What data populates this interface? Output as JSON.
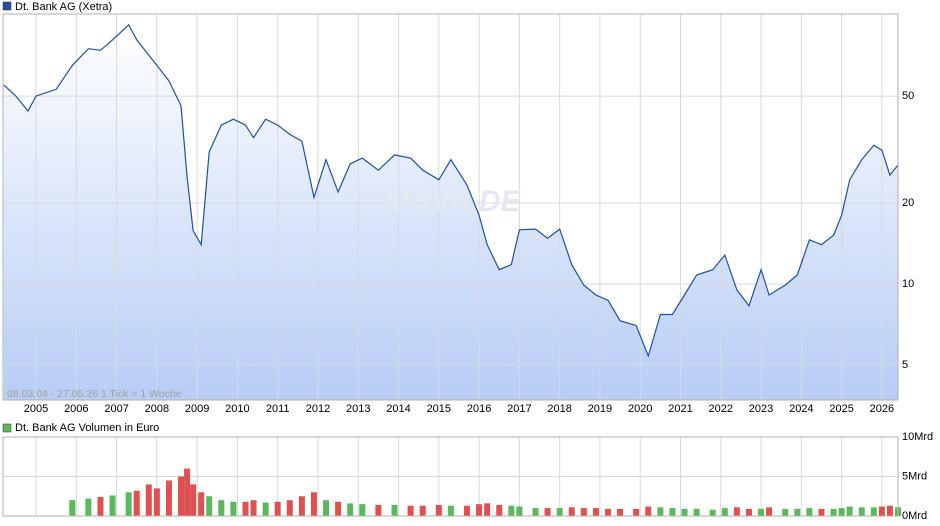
{
  "chart_data": [
    {
      "type": "line",
      "title": "Dt. Bank AG (Xetra)",
      "annotation": "08.03.04 - 27.05.26   1 Tick = 1 Woche",
      "watermark": "ARIVA.DE",
      "log_scale": true,
      "grid": true,
      "x": [
        2004.2,
        2004.5,
        2004.8,
        2005.0,
        2005.5,
        2005.9,
        2006.3,
        2006.6,
        2006.9,
        2007.3,
        2007.5,
        2007.8,
        2008.0,
        2008.3,
        2008.6,
        2008.75,
        2008.9,
        2009.1,
        2009.3,
        2009.6,
        2009.9,
        2010.2,
        2010.4,
        2010.7,
        2011.0,
        2011.3,
        2011.6,
        2011.9,
        2012.2,
        2012.5,
        2012.8,
        2013.1,
        2013.5,
        2013.9,
        2014.3,
        2014.6,
        2015.0,
        2015.3,
        2015.7,
        2016.0,
        2016.2,
        2016.5,
        2016.8,
        2017.0,
        2017.4,
        2017.7,
        2018.0,
        2018.3,
        2018.6,
        2018.9,
        2019.2,
        2019.5,
        2019.9,
        2020.2,
        2020.5,
        2020.8,
        2021.1,
        2021.4,
        2021.8,
        2022.1,
        2022.4,
        2022.7,
        2023.0,
        2023.2,
        2023.6,
        2023.9,
        2024.2,
        2024.5,
        2024.8,
        2025.0,
        2025.2,
        2025.5,
        2025.8,
        2026.0,
        2026.2,
        2026.4
      ],
      "series": [
        {
          "name": "Dt. Bank AG (Xetra)",
          "color": "#1f4fa8",
          "values": [
            55,
            50,
            44,
            50,
            53,
            65,
            75,
            74,
            81,
            92,
            81,
            71,
            65,
            57,
            46,
            25,
            15.8,
            14,
            31,
            39,
            41,
            39,
            35,
            41,
            39,
            36,
            34,
            21,
            29,
            22,
            28,
            29.4,
            26.5,
            30.2,
            29.4,
            26.5,
            24.4,
            29,
            23.3,
            18,
            14,
            11.3,
            11.8,
            15.9,
            16,
            14.8,
            16,
            11.8,
            9.9,
            9.1,
            8.7,
            7.3,
            7.0,
            5.4,
            7.7,
            7.7,
            9.1,
            10.8,
            11.3,
            12.8,
            9.5,
            8.3,
            11.3,
            9.1,
            9.9,
            10.8,
            14.6,
            14,
            15.2,
            18,
            24.4,
            29,
            32.8,
            31.5,
            25.4,
            27.7
          ]
        }
      ],
      "xlim": [
        2004.18,
        2026.4
      ],
      "xticks": [
        2005,
        2006,
        2007,
        2008,
        2009,
        2010,
        2011,
        2012,
        2013,
        2014,
        2015,
        2016,
        2017,
        2018,
        2019,
        2020,
        2021,
        2022,
        2023,
        2024,
        2025,
        2026
      ],
      "ylim": [
        3.7,
        101
      ],
      "yticks": [
        5,
        10,
        20,
        50
      ]
    },
    {
      "type": "bar",
      "title": "Dt. Bank AG Volumen in Euro",
      "color": "#5cb85c",
      "down_color": "#e05050",
      "x": [
        2004.2,
        2004.5,
        2004.8,
        2005.0,
        2005.5,
        2005.9,
        2006.3,
        2006.6,
        2006.9,
        2007.3,
        2007.5,
        2007.8,
        2008.0,
        2008.3,
        2008.6,
        2008.75,
        2008.9,
        2009.1,
        2009.3,
        2009.6,
        2009.9,
        2010.2,
        2010.4,
        2010.7,
        2011.0,
        2011.3,
        2011.6,
        2011.9,
        2012.2,
        2012.5,
        2012.8,
        2013.1,
        2013.5,
        2013.9,
        2014.3,
        2014.6,
        2015.0,
        2015.3,
        2015.7,
        2016.0,
        2016.2,
        2016.5,
        2016.8,
        2017.0,
        2017.4,
        2017.7,
        2018.0,
        2018.3,
        2018.6,
        2018.9,
        2019.2,
        2019.5,
        2019.9,
        2020.2,
        2020.5,
        2020.8,
        2021.1,
        2021.4,
        2021.8,
        2022.1,
        2022.4,
        2022.7,
        2023.0,
        2023.2,
        2023.6,
        2023.9,
        2024.2,
        2024.5,
        2024.8,
        2025.0,
        2025.2,
        2025.5,
        2025.8,
        2026.0,
        2026.2,
        2026.4
      ],
      "values": [
        null,
        null,
        null,
        null,
        null,
        2,
        2.2,
        2.4,
        2.6,
        3,
        3.2,
        4,
        3.5,
        4.5,
        5,
        6,
        4,
        3,
        2.5,
        2,
        1.8,
        1.8,
        2,
        1.7,
        1.8,
        2,
        2.5,
        3,
        2,
        1.8,
        1.6,
        1.5,
        1.4,
        1.4,
        1.3,
        1.3,
        1.4,
        1.3,
        1.3,
        1.5,
        1.6,
        1.4,
        1.3,
        1.2,
        1,
        1,
        1,
        1.1,
        1,
        1,
        0.9,
        0.9,
        0.9,
        1.2,
        1.1,
        1,
        0.9,
        0.9,
        0.8,
        1,
        1.1,
        0.9,
        0.9,
        1.1,
        0.9,
        0.9,
        1,
        0.9,
        0.9,
        1,
        1.2,
        1.1,
        1.1,
        1.2,
        1.3,
        1.1
      ],
      "xlim": [
        2004.18,
        2026.4
      ],
      "ylim": [
        0,
        10
      ],
      "yticks": [
        {
          "value": 0,
          "label": "0Mrd"
        },
        {
          "value": 5,
          "label": "5Mrd"
        },
        {
          "value": 10,
          "label": "10Mrd"
        }
      ]
    }
  ]
}
